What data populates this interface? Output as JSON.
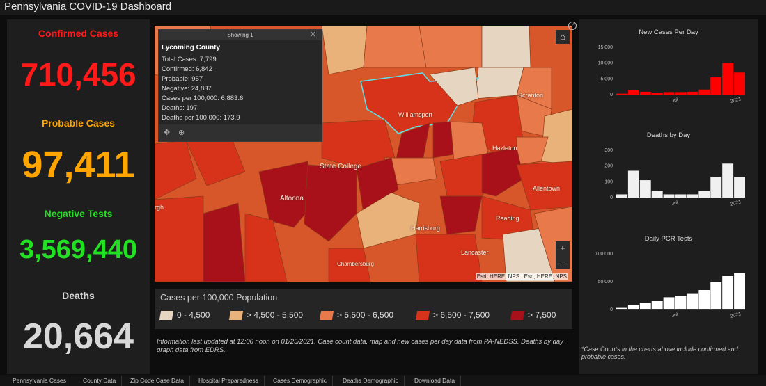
{
  "app": {
    "title": "Pennsylvania COVID-19 Dashboard"
  },
  "stats": [
    {
      "label": "Confirmed Cases",
      "value": "710,456",
      "color": "#ff1a1a"
    },
    {
      "label": "Probable Cases",
      "value": "97,411",
      "color": "#ffa500"
    },
    {
      "label": "Negative Tests",
      "value": "3,569,440",
      "color": "#22e022"
    },
    {
      "label": "Deaths",
      "value": "20,664",
      "color": "#d8d8d8"
    }
  ],
  "popup": {
    "header": "Showing 1",
    "title": "Lycoming County",
    "lines": [
      "Total Cases: 7,799",
      "Confirmed: 6,842",
      "Probable: 957",
      "Negative: 24,837",
      "Cases per 100,000: 6,883.6",
      "Deaths: 197",
      "Deaths per 100,000: 173.9"
    ]
  },
  "map": {
    "places": [
      "Williamsport",
      "Scranton",
      "Hazleton",
      "State College",
      "Altoona",
      "Allentown",
      "Reading",
      "Harrisburg",
      "Lancaster",
      "Chambersburg",
      "rgh"
    ],
    "attribution": "Esri, HERE, NPS | Esri, HERE, NPS",
    "icons": [
      "home-icon",
      "fullscreen-icon",
      "zoom-in-icon",
      "zoom-out-icon",
      "pan-icon",
      "zoom-to-icon",
      "close-icon"
    ]
  },
  "legend": {
    "title": "Cases per 100,000 Population",
    "items": [
      {
        "label": "0 - 4,500",
        "color": "#e6d5c0"
      },
      {
        "label": "> 4,500 - 5,500",
        "color": "#e8b27a"
      },
      {
        "label": "> 5,500 - 6,500",
        "color": "#e8794a"
      },
      {
        "label": "> 6,500 - 7,500",
        "color": "#d6331a"
      },
      {
        "label": "> 7,500",
        "color": "#a8101a"
      }
    ]
  },
  "note": "Information last updated at 12:00 noon on 01/25/2021. Case count data, map and new cases per day data from PA-NEDSS.  Deaths by day graph data from EDRS.",
  "chart_data": [
    {
      "type": "bar",
      "title": "New Cases Per Day",
      "color": "#ff0000",
      "yticks": [
        "15,000",
        "10,000",
        "5,000",
        "0"
      ],
      "ylim": [
        0,
        15000
      ],
      "xticks": [
        "Jul",
        "2021"
      ],
      "x": [
        "2020-03",
        "2020-04",
        "2020-05",
        "2020-06",
        "2020-07",
        "2020-08",
        "2020-09",
        "2020-10",
        "2020-11",
        "2020-12",
        "2021-01"
      ],
      "values": [
        300,
        1400,
        900,
        500,
        800,
        800,
        900,
        1600,
        5500,
        10000,
        7000
      ]
    },
    {
      "type": "bar",
      "title": "Deaths by Day",
      "color": "#f0f0f0",
      "yticks": [
        "300",
        "200",
        "100",
        "0"
      ],
      "ylim": [
        0,
        300
      ],
      "xticks": [
        "Jul",
        "2021"
      ],
      "x": [
        "2020-03",
        "2020-04",
        "2020-05",
        "2020-06",
        "2020-07",
        "2020-08",
        "2020-09",
        "2020-10",
        "2020-11",
        "2020-12",
        "2021-01"
      ],
      "values": [
        20,
        170,
        110,
        40,
        20,
        20,
        20,
        40,
        130,
        215,
        130
      ]
    },
    {
      "type": "bar",
      "title": "Daily PCR Tests",
      "color": "#ffffff",
      "yticks": [
        "100,000",
        "50,000",
        "0"
      ],
      "ylim": [
        0,
        100000
      ],
      "xticks": [
        "Jul",
        "2021"
      ],
      "x": [
        "2020-03",
        "2020-04",
        "2020-05",
        "2020-06",
        "2020-07",
        "2020-08",
        "2020-09",
        "2020-10",
        "2020-11",
        "2020-12",
        "2021-01"
      ],
      "values": [
        3000,
        8000,
        12000,
        15000,
        22000,
        25000,
        28000,
        35000,
        50000,
        60000,
        65000
      ]
    }
  ],
  "chart_footnote": "*Case Counts in the charts above include confirmed and probable cases.",
  "tabs": [
    "Pennsylvania Cases",
    "County Data",
    "Zip Code Case Data",
    "Hospital Preparedness",
    "Cases Demographic",
    "Deaths Demographic",
    "Download Data"
  ]
}
